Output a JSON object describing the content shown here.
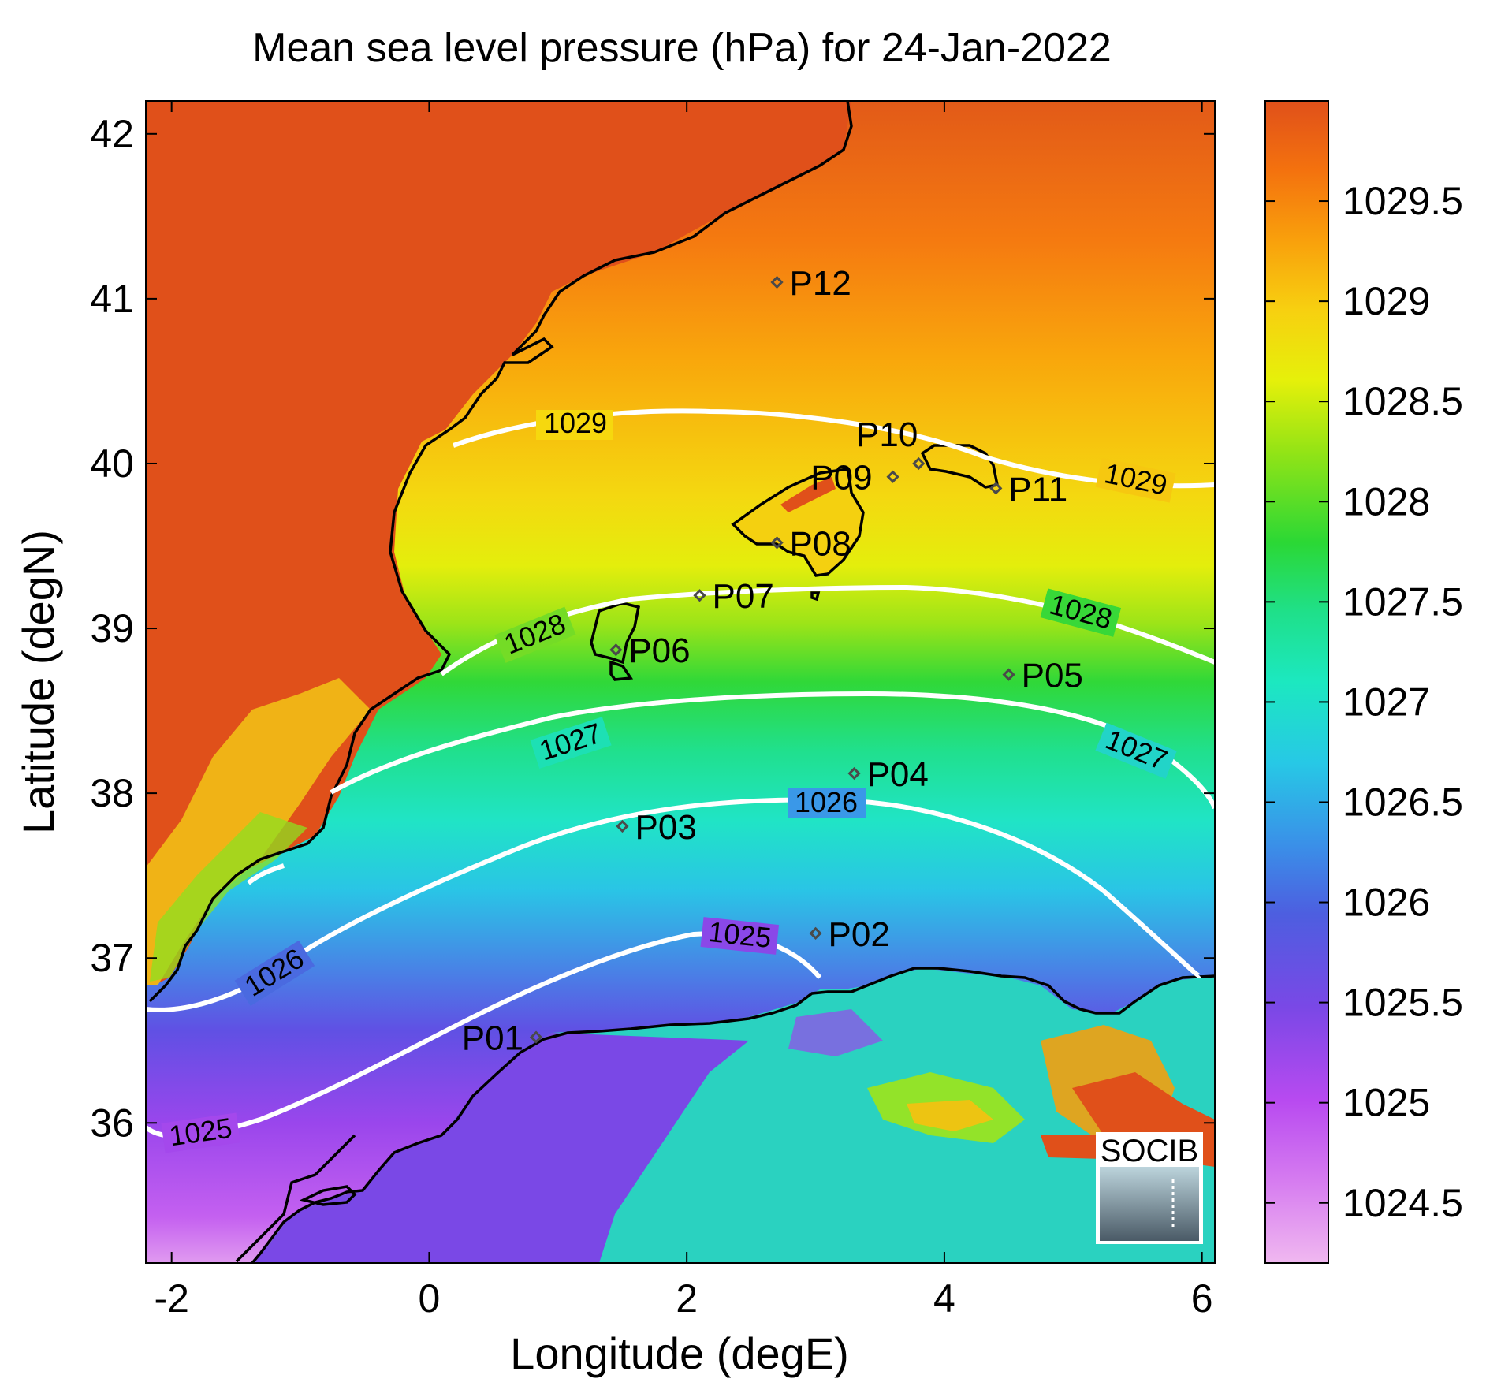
{
  "title": "Mean sea level pressure (hPa) for 24-Jan-2022",
  "axes": {
    "xlabel": "Longitude (degE)",
    "ylabel": "Latitude (degN)",
    "xlim": [
      -2.2,
      6.1
    ],
    "ylim": [
      35.15,
      42.2
    ],
    "xticks": [
      -2,
      0,
      2,
      4,
      6
    ],
    "yticks": [
      36,
      37,
      38,
      39,
      40,
      41,
      42
    ]
  },
  "colorbar": {
    "range": [
      1024.2,
      1030.0
    ],
    "ticks": [
      "1024.5",
      "1025",
      "1025.5",
      "1026",
      "1026.5",
      "1027",
      "1027.5",
      "1028",
      "1028.5",
      "1029",
      "1029.5"
    ],
    "colors": [
      "#f0b8f0",
      "#d67cf0",
      "#b84af0",
      "#7a48e6",
      "#4d5ee0",
      "#3a90e8",
      "#27c8e6",
      "#1ce8c0",
      "#1fe08a",
      "#2bd835",
      "#96e415",
      "#e6f00a",
      "#f7d010",
      "#f9a00c",
      "#f4720e",
      "#e0501a"
    ]
  },
  "contour_labels": [
    "1025",
    "1025",
    "1026",
    "1026",
    "1027",
    "1027",
    "1028",
    "1028",
    "1029",
    "1029"
  ],
  "stations": [
    {
      "id": "P01",
      "lon": 0.83,
      "lat": 36.52
    },
    {
      "id": "P02",
      "lon": 3.0,
      "lat": 37.15
    },
    {
      "id": "P03",
      "lon": 1.5,
      "lat": 37.8
    },
    {
      "id": "P04",
      "lon": 3.3,
      "lat": 38.12
    },
    {
      "id": "P05",
      "lon": 4.5,
      "lat": 38.72
    },
    {
      "id": "P06",
      "lon": 1.45,
      "lat": 38.87
    },
    {
      "id": "P07",
      "lon": 2.1,
      "lat": 39.2
    },
    {
      "id": "P08",
      "lon": 2.7,
      "lat": 39.52
    },
    {
      "id": "P09",
      "lon": 3.6,
      "lat": 39.92
    },
    {
      "id": "P10",
      "lon": 3.8,
      "lat": 40.0
    },
    {
      "id": "P11",
      "lon": 4.4,
      "lat": 39.85
    },
    {
      "id": "P12",
      "lon": 2.7,
      "lat": 41.1
    }
  ],
  "logo_text": "SOCIB"
}
